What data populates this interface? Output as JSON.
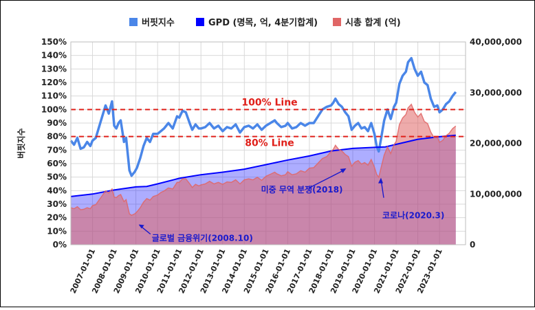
{
  "chart_data": {
    "type": "line",
    "legend": [
      {
        "name": "버핏지수",
        "color": "#4a86e8",
        "shape": "square"
      },
      {
        "name": "GPD (명목, 억, 4분기합계)",
        "color": "#0000ff",
        "shape": "square"
      },
      {
        "name": "시총 합계 (억)",
        "color": "#e06666",
        "shape": "square"
      }
    ],
    "legend_position": "top",
    "y_left": {
      "min": 0,
      "max": 150,
      "step": 10,
      "suffix": "%",
      "label": "버핏지수"
    },
    "y_right": {
      "min": 0,
      "max": 40000000,
      "step": 10000000,
      "tick_labels": [
        "0",
        "10,000,000",
        "20,000,000",
        "30,000,000",
        "40,000,000"
      ]
    },
    "x": {
      "min": 2006.0,
      "max": 2024.2,
      "tick_labels": [
        "2007-01-01",
        "2008-01-01",
        "2009-01-01",
        "2010-01-01",
        "2011-01-01",
        "2012-01-01",
        "2013-01-01",
        "2014-01-01",
        "2015-01-01",
        "2016-01-01",
        "2017-01-01",
        "2018-01-01",
        "2019-01-01",
        "2020-01-01",
        "2021-01-01",
        "2022-01-01",
        "2023-01-01"
      ]
    },
    "grid": true,
    "reference_lines": [
      {
        "label": "100% Line",
        "value": 100,
        "color": "#e0201a"
      },
      {
        "label": "80% Line",
        "value": 80,
        "color": "#e0201a"
      }
    ],
    "annotations": [
      {
        "text": "글로벌 금융위기(2008.10)",
        "color": "#1a1acc",
        "x": 2009.1,
        "y": 16
      },
      {
        "text": "미중 무역 분쟁(2018)",
        "color": "#1a1acc",
        "x": 2018.7,
        "y": 57
      },
      {
        "text": "코로나(2020.3)",
        "color": "#1a1acc",
        "x": 2020.3,
        "y": 50
      }
    ],
    "series": [
      {
        "name": "버핏지수",
        "axis": "left",
        "color": "#4a86e8",
        "style": "line",
        "x": [
          2006.0,
          2006.15,
          2006.3,
          2006.45,
          2006.6,
          2006.75,
          2006.9,
          2007.0,
          2007.15,
          2007.3,
          2007.45,
          2007.6,
          2007.75,
          2007.9,
          2008.0,
          2008.1,
          2008.2,
          2008.3,
          2008.45,
          2008.55,
          2008.7,
          2008.8,
          2008.95,
          2009.05,
          2009.2,
          2009.35,
          2009.5,
          2009.65,
          2009.8,
          2010.0,
          2010.15,
          2010.3,
          2010.5,
          2010.7,
          2010.9,
          2011.0,
          2011.15,
          2011.3,
          2011.5,
          2011.6,
          2011.75,
          2011.9,
          2012.0,
          2012.2,
          2012.4,
          2012.6,
          2012.8,
          2013.0,
          2013.2,
          2013.4,
          2013.6,
          2013.8,
          2014.0,
          2014.2,
          2014.4,
          2014.6,
          2014.8,
          2015.0,
          2015.2,
          2015.4,
          2015.5,
          2015.7,
          2015.9,
          2016.0,
          2016.2,
          2016.4,
          2016.6,
          2016.8,
          2017.0,
          2017.2,
          2017.4,
          2017.6,
          2017.8,
          2018.0,
          2018.1,
          2018.2,
          2018.35,
          2018.5,
          2018.65,
          2018.8,
          2018.95,
          2019.1,
          2019.25,
          2019.4,
          2019.55,
          2019.7,
          2019.85,
          2020.0,
          2020.1,
          2020.2,
          2020.3,
          2020.45,
          2020.6,
          2020.75,
          2020.9,
          2021.0,
          2021.15,
          2021.3,
          2021.45,
          2021.55,
          2021.7,
          2021.85,
          2022.0,
          2022.15,
          2022.3,
          2022.45,
          2022.6,
          2022.75,
          2022.9,
          2023.0,
          2023.15,
          2023.3,
          2023.45,
          2023.6,
          2023.75
        ],
        "values": [
          77,
          74,
          79,
          71,
          72,
          76,
          73,
          77,
          79,
          87,
          95,
          103,
          97,
          106,
          88,
          86,
          90,
          92,
          76,
          79,
          55,
          51,
          54,
          57,
          64,
          73,
          79,
          76,
          82,
          82,
          84,
          86,
          90,
          86,
          95,
          94,
          99,
          98,
          89,
          85,
          89,
          86,
          86,
          87,
          90,
          86,
          88,
          84,
          87,
          86,
          89,
          83,
          87,
          88,
          86,
          89,
          85,
          88,
          90,
          92,
          90,
          87,
          88,
          90,
          86,
          87,
          90,
          88,
          90,
          90,
          95,
          100,
          102,
          103,
          105,
          108,
          104,
          102,
          98,
          95,
          85,
          88,
          90,
          86,
          87,
          84,
          90,
          82,
          73,
          69,
          78,
          92,
          100,
          93,
          102,
          105,
          119,
          125,
          128,
          135,
          138,
          130,
          125,
          128,
          120,
          118,
          108,
          102,
          103,
          98,
          100,
          104,
          106,
          110,
          113
        ]
      },
      {
        "name": "GPD (명목, 억, 4분기합계)",
        "axis": "right",
        "color": "#0000ff",
        "style": "area",
        "x": [
          2006.0,
          2007.0,
          2008.0,
          2009.0,
          2009.5,
          2010.0,
          2011.0,
          2012.0,
          2013.0,
          2014.0,
          2015.0,
          2016.0,
          2017.0,
          2018.0,
          2019.0,
          2020.0,
          2020.5,
          2021.0,
          2022.0,
          2023.0,
          2023.75
        ],
        "values": [
          9500000,
          10000000,
          10800000,
          11400000,
          11500000,
          12000000,
          13100000,
          13800000,
          14300000,
          14900000,
          15800000,
          16700000,
          17500000,
          18500000,
          19000000,
          19200000,
          19300000,
          19800000,
          20800000,
          21300000,
          21600000
        ]
      },
      {
        "name": "시총 합계 (억)",
        "axis": "right",
        "color": "#e06666",
        "style": "area",
        "x": [
          2006.0,
          2006.15,
          2006.3,
          2006.45,
          2006.6,
          2006.75,
          2006.9,
          2007.0,
          2007.15,
          2007.3,
          2007.45,
          2007.6,
          2007.75,
          2007.9,
          2008.0,
          2008.1,
          2008.2,
          2008.3,
          2008.45,
          2008.55,
          2008.7,
          2008.8,
          2008.95,
          2009.05,
          2009.2,
          2009.35,
          2009.5,
          2009.65,
          2009.8,
          2010.0,
          2010.15,
          2010.3,
          2010.5,
          2010.7,
          2010.9,
          2011.0,
          2011.15,
          2011.3,
          2011.5,
          2011.6,
          2011.75,
          2011.9,
          2012.0,
          2012.2,
          2012.4,
          2012.6,
          2012.8,
          2013.0,
          2013.2,
          2013.4,
          2013.6,
          2013.8,
          2014.0,
          2014.2,
          2014.4,
          2014.6,
          2014.8,
          2015.0,
          2015.2,
          2015.4,
          2015.5,
          2015.7,
          2015.9,
          2016.0,
          2016.2,
          2016.4,
          2016.6,
          2016.8,
          2017.0,
          2017.2,
          2017.4,
          2017.6,
          2017.8,
          2018.0,
          2018.1,
          2018.2,
          2018.35,
          2018.5,
          2018.65,
          2018.8,
          2018.95,
          2019.1,
          2019.25,
          2019.4,
          2019.55,
          2019.7,
          2019.85,
          2020.0,
          2020.1,
          2020.2,
          2020.3,
          2020.45,
          2020.6,
          2020.75,
          2020.9,
          2021.0,
          2021.15,
          2021.3,
          2021.45,
          2021.55,
          2021.7,
          2021.85,
          2022.0,
          2022.15,
          2022.3,
          2022.45,
          2022.6,
          2022.75,
          2022.9,
          2023.0,
          2023.15,
          2023.3,
          2023.45,
          2023.6,
          2023.75
        ],
        "values": [
          7300000,
          7100000,
          7500000,
          6900000,
          7000000,
          7300000,
          7100000,
          7700000,
          7900000,
          8800000,
          9700000,
          10600000,
          10200000,
          11000000,
          9400000,
          9300000,
          9700000,
          9900000,
          8500000,
          8900000,
          6100000,
          5800000,
          6100000,
          6500000,
          7300000,
          8400000,
          9100000,
          8800000,
          9500000,
          9800000,
          10300000,
          10600000,
          11200000,
          11000000,
          12300000,
          12300000,
          13000000,
          13000000,
          11900000,
          11300000,
          11900000,
          11600000,
          11800000,
          12000000,
          12500000,
          12000000,
          12300000,
          11900000,
          12400000,
          12300000,
          12800000,
          12000000,
          12800000,
          13000000,
          12800000,
          13300000,
          12700000,
          13500000,
          13900000,
          14300000,
          14000000,
          13600000,
          13800000,
          14400000,
          13800000,
          14000000,
          14600000,
          14300000,
          15100000,
          15200000,
          16100000,
          17000000,
          17400000,
          18400000,
          18800000,
          19600000,
          18800000,
          18500000,
          17800000,
          17400000,
          15500000,
          16300000,
          16600000,
          15900000,
          16200000,
          15700000,
          16800000,
          15300000,
          13900000,
          13300000,
          15100000,
          17700000,
          19300000,
          18000000,
          19700000,
          20400000,
          23700000,
          25000000,
          25700000,
          27000000,
          27700000,
          26100000,
          25200000,
          25900000,
          24300000,
          23900000,
          22200000,
          21100000,
          21300000,
          20200000,
          20600000,
          21500000,
          22000000,
          22900000,
          23400000
        ]
      }
    ]
  }
}
